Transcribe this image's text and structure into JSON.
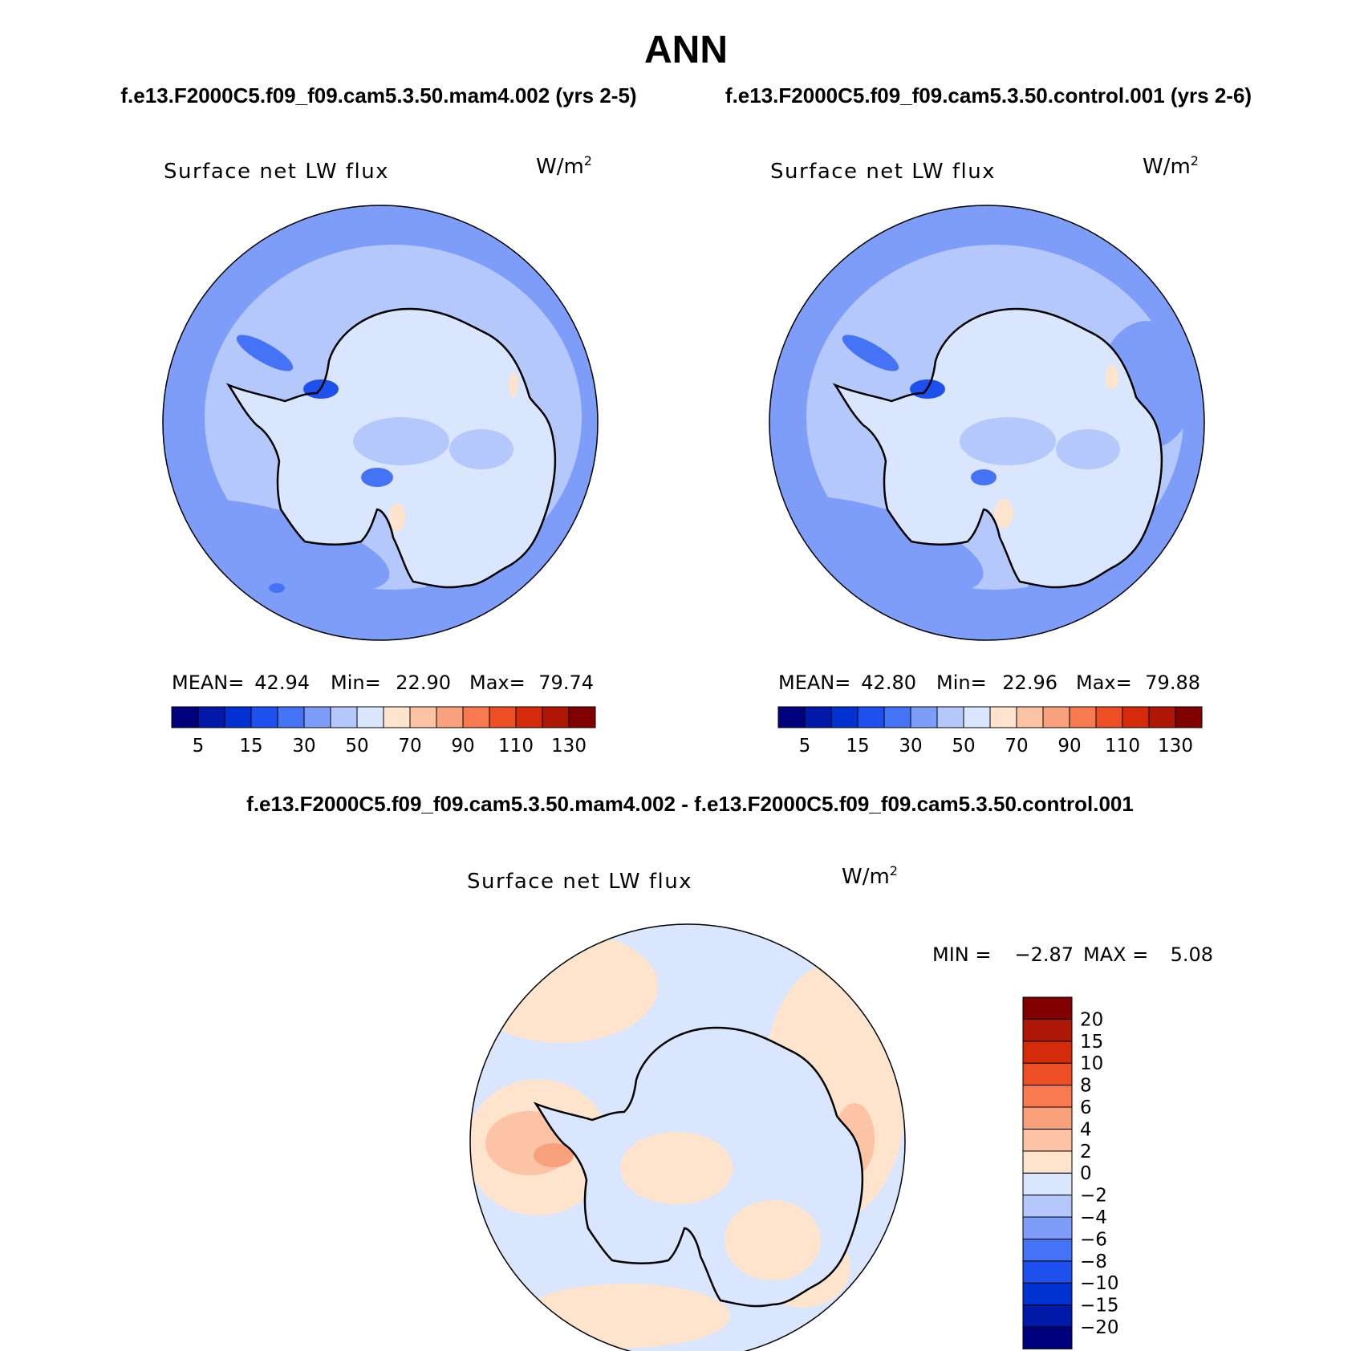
{
  "title": "ANN",
  "subtitle_left": "f.e13.F2000C5.f09_f09.cam5.3.50.mam4.002 (yrs 2-5)",
  "subtitle_right": "f.e13.F2000C5.f09_f09.cam5.3.50.control.001 (yrs 2-6)",
  "diff_title": "f.e13.F2000C5.f09_f09.cam5.3.50.mam4.002 - f.e13.F2000C5.f09_f09.cam5.3.50.control.001",
  "panels": [
    {
      "variable": "Surface net LW flux",
      "units": "W/m",
      "units_sup": "2",
      "stats": {
        "mean_label": "MEAN=",
        "mean": "42.94",
        "min_label": "Min=",
        "min": "22.90",
        "max_label": "Max=",
        "max": "79.74"
      }
    },
    {
      "variable": "Surface net LW flux",
      "units": "W/m",
      "units_sup": "2",
      "stats": {
        "mean_label": "MEAN=",
        "mean": "42.80",
        "min_label": "Min=",
        "min": "22.96",
        "max_label": "Max=",
        "max": "79.88"
      }
    }
  ],
  "abs_colorbar": {
    "colors": [
      "#00007f",
      "#0019a8",
      "#0032d1",
      "#1e50ee",
      "#4573f5",
      "#7e9df8",
      "#b4c8fb",
      "#dae6fd",
      "#fee3cd",
      "#fcc3a5",
      "#f9a07d",
      "#f77a51",
      "#ee4e24",
      "#d42b0a",
      "#ae1705",
      "#800000"
    ],
    "tick_labels": [
      "5",
      "15",
      "30",
      "50",
      "70",
      "90",
      "110",
      "130"
    ]
  },
  "diff_panel": {
    "variable": "Surface net LW flux",
    "units": "W/m",
    "units_sup": "2",
    "min_label": "MIN =",
    "min": "−2.87",
    "max_label": "MAX =",
    "max": "5.08"
  },
  "diff_colorbar": {
    "colors": [
      "#00007f",
      "#0019a8",
      "#0032d1",
      "#1e50ee",
      "#4573f5",
      "#7e9df8",
      "#b4c8fb",
      "#dae6fd",
      "#fee3cd",
      "#fcc3a5",
      "#f9a07d",
      "#f77a51",
      "#ee4e24",
      "#d42b0a",
      "#ae1705",
      "#800000"
    ],
    "tick_labels": [
      "20",
      "15",
      "10",
      "8",
      "6",
      "4",
      "2",
      "0",
      "−2",
      "−4",
      "−6",
      "−8",
      "−10",
      "−15",
      "−20"
    ]
  },
  "map_colors": {
    "ocean_dark": "#7e9df8",
    "ocean_light": "#b4c8fb",
    "land_light": "#dae6fd",
    "mid_blue": "#4573f5",
    "strong_blue": "#1e50ee",
    "warm": "#fee3cd",
    "warm2": "#fcc3a5",
    "diff_neg": "#dae6fd",
    "diff_pos": "#fee3cd",
    "diff_pos2": "#fcc3a5",
    "diff_pos3": "#f9a07d",
    "diff_neg2": "#b4c8fb",
    "coast": "#000000"
  }
}
